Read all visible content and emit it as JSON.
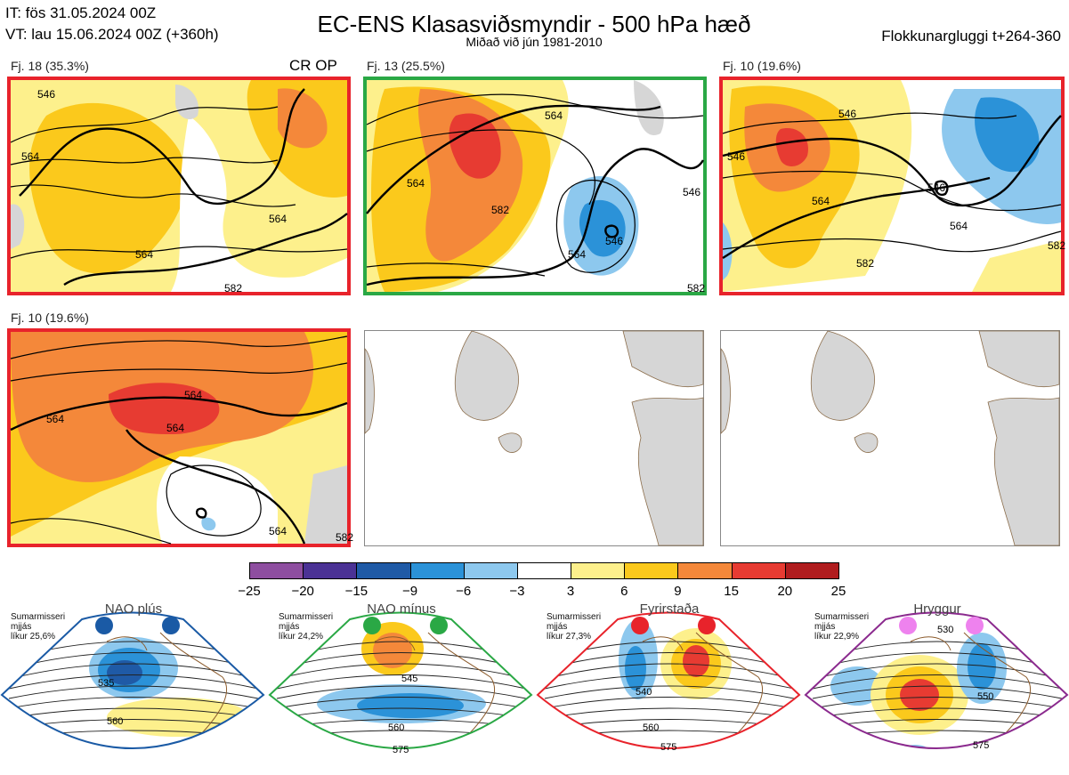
{
  "header": {
    "it": "IT: fös 31.05.2024 00Z",
    "vt": "VT: lau 15.06.2024 00Z  (+360h)",
    "title": "EC-ENS Klasasviðsmyndir - 500 hPa hæð",
    "subtitle": "Miðað við jún 1981-2010",
    "window": "Flokkunargluggi t+264-360"
  },
  "clusters": [
    {
      "label": "Fj. 18 (35.3%)",
      "tag": "CR OP",
      "border": "#e8232b",
      "contour_labels": [
        "546",
        "564",
        "564",
        "564",
        "582"
      ]
    },
    {
      "label": "Fj. 13 (25.5%)",
      "tag": "",
      "border": "#2aa845",
      "contour_labels": [
        "564",
        "564",
        "582",
        "546",
        "564",
        "546",
        "582"
      ]
    },
    {
      "label": "Fj. 10 (19.6%)",
      "tag": "",
      "border": "#e8232b",
      "contour_labels": [
        "546",
        "546",
        "564",
        "546",
        "564",
        "582",
        "582"
      ]
    },
    {
      "label": "Fj. 10 (19.6%)",
      "tag": "",
      "border": "#e8232b",
      "contour_labels": [
        "564",
        "564",
        "564",
        "564",
        "582"
      ]
    }
  ],
  "colorbar": {
    "ticks": [
      "−25",
      "−20",
      "−15",
      "−9",
      "−6",
      "−3",
      "3",
      "6",
      "9",
      "15",
      "20",
      "25"
    ],
    "colors": [
      "#8e4ea0",
      "#4b3295",
      "#1f5aa6",
      "#2b92d8",
      "#8dc8ee",
      "#ffffff",
      "#fdf08c",
      "#fbc91c",
      "#f4883a",
      "#e73b32",
      "#b01c1e"
    ]
  },
  "regimes": [
    {
      "name": "NAO plús",
      "note": [
        "Sumarmisseri",
        "mjjás",
        "líkur 25,6%"
      ],
      "dot_color": "#1a5aa5",
      "frame_color": "#1a5aa5",
      "contour_labels": [
        "535",
        "560"
      ]
    },
    {
      "name": "NAO mínus",
      "note": [
        "Sumarmisseri",
        "mjjás",
        "líkur 24,2%"
      ],
      "dot_color": "#2aa845",
      "frame_color": "#2aa845",
      "contour_labels": [
        "545",
        "560",
        "575"
      ]
    },
    {
      "name": "Fyrirstaða",
      "note": [
        "Sumarmisseri",
        "mjjás",
        "líkur 27,3%"
      ],
      "dot_color": "#e8232b",
      "frame_color": "#e8232b",
      "contour_labels": [
        "540",
        "560",
        "575"
      ]
    },
    {
      "name": "Hryggur",
      "note": [
        "Sumarmisseri",
        "mjjás",
        "líkur 22,9%"
      ],
      "dot_color": "#ee82ee",
      "frame_color": "#8b2a8e",
      "contour_labels": [
        "530",
        "550",
        "575"
      ]
    }
  ],
  "chart_data": {
    "type": "heatmap",
    "title": "EC-ENS Klasasviðsmyndir - 500 hPa hæð",
    "subtitle": "Miðað við jún 1981-2010",
    "colorbar_ticks": [
      -25,
      -20,
      -15,
      -9,
      -6,
      -3,
      3,
      6,
      9,
      15,
      20,
      25
    ],
    "clusters": [
      {
        "name": "Fj. 18",
        "probability_pct": 35.3
      },
      {
        "name": "Fj. 13",
        "probability_pct": 25.5
      },
      {
        "name": "Fj. 10",
        "probability_pct": 19.6
      },
      {
        "name": "Fj. 10",
        "probability_pct": 19.6
      }
    ],
    "regimes": [
      {
        "name": "NAO plús",
        "likelihood_pct": 25.6
      },
      {
        "name": "NAO mínus",
        "likelihood_pct": 24.2
      },
      {
        "name": "Fyrirstaða",
        "likelihood_pct": 27.3
      },
      {
        "name": "Hryggur",
        "likelihood_pct": 22.9
      }
    ]
  }
}
